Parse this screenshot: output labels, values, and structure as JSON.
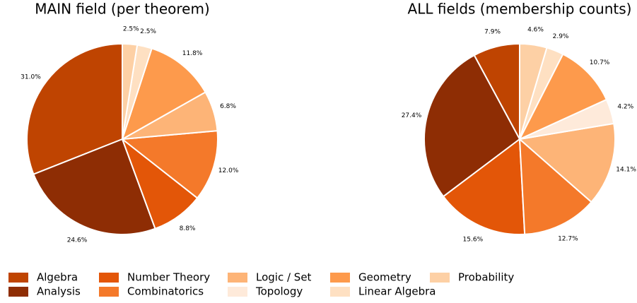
{
  "chart_data": [
    {
      "type": "pie",
      "title": "MAIN field (per theorem)",
      "categories": [
        "Algebra",
        "Analysis",
        "Number Theory",
        "Combinatorics",
        "Logic / Set",
        "Geometry",
        "Linear Algebra",
        "Probability"
      ],
      "values": [
        31.0,
        24.6,
        8.8,
        12.0,
        6.8,
        11.8,
        2.5,
        2.5
      ],
      "value_labels": [
        "31.0%",
        "24.6%",
        "8.8%",
        "12.0%",
        "6.8%",
        "11.8%",
        "2.5%",
        "2.5%"
      ]
    },
    {
      "type": "pie",
      "title": "ALL fields (membership counts)",
      "categories": [
        "Algebra",
        "Analysis",
        "Number Theory",
        "Combinatorics",
        "Logic / Set",
        "Topology",
        "Geometry",
        "Linear Algebra",
        "Probability"
      ],
      "values": [
        7.9,
        27.4,
        15.6,
        12.7,
        14.1,
        4.2,
        10.7,
        2.9,
        4.6
      ],
      "value_labels": [
        "7.9%",
        "27.4%",
        "15.6%",
        "12.7%",
        "14.1%",
        "4.2%",
        "10.7%",
        "2.9%",
        "4.6%"
      ]
    }
  ],
  "legend": [
    {
      "name": "Algebra",
      "color": "#bf4401"
    },
    {
      "name": "Analysis",
      "color": "#8e2d04"
    },
    {
      "name": "Number Theory",
      "color": "#e35608"
    },
    {
      "name": "Combinatorics",
      "color": "#f4792a"
    },
    {
      "name": "Logic / Set",
      "color": "#fdb477"
    },
    {
      "name": "Topology",
      "color": "#feeada"
    },
    {
      "name": "Geometry",
      "color": "#fd9a4c"
    },
    {
      "name": "Linear Algebra",
      "color": "#fee0c2"
    },
    {
      "name": "Probability",
      "color": "#fdd0a5"
    }
  ]
}
